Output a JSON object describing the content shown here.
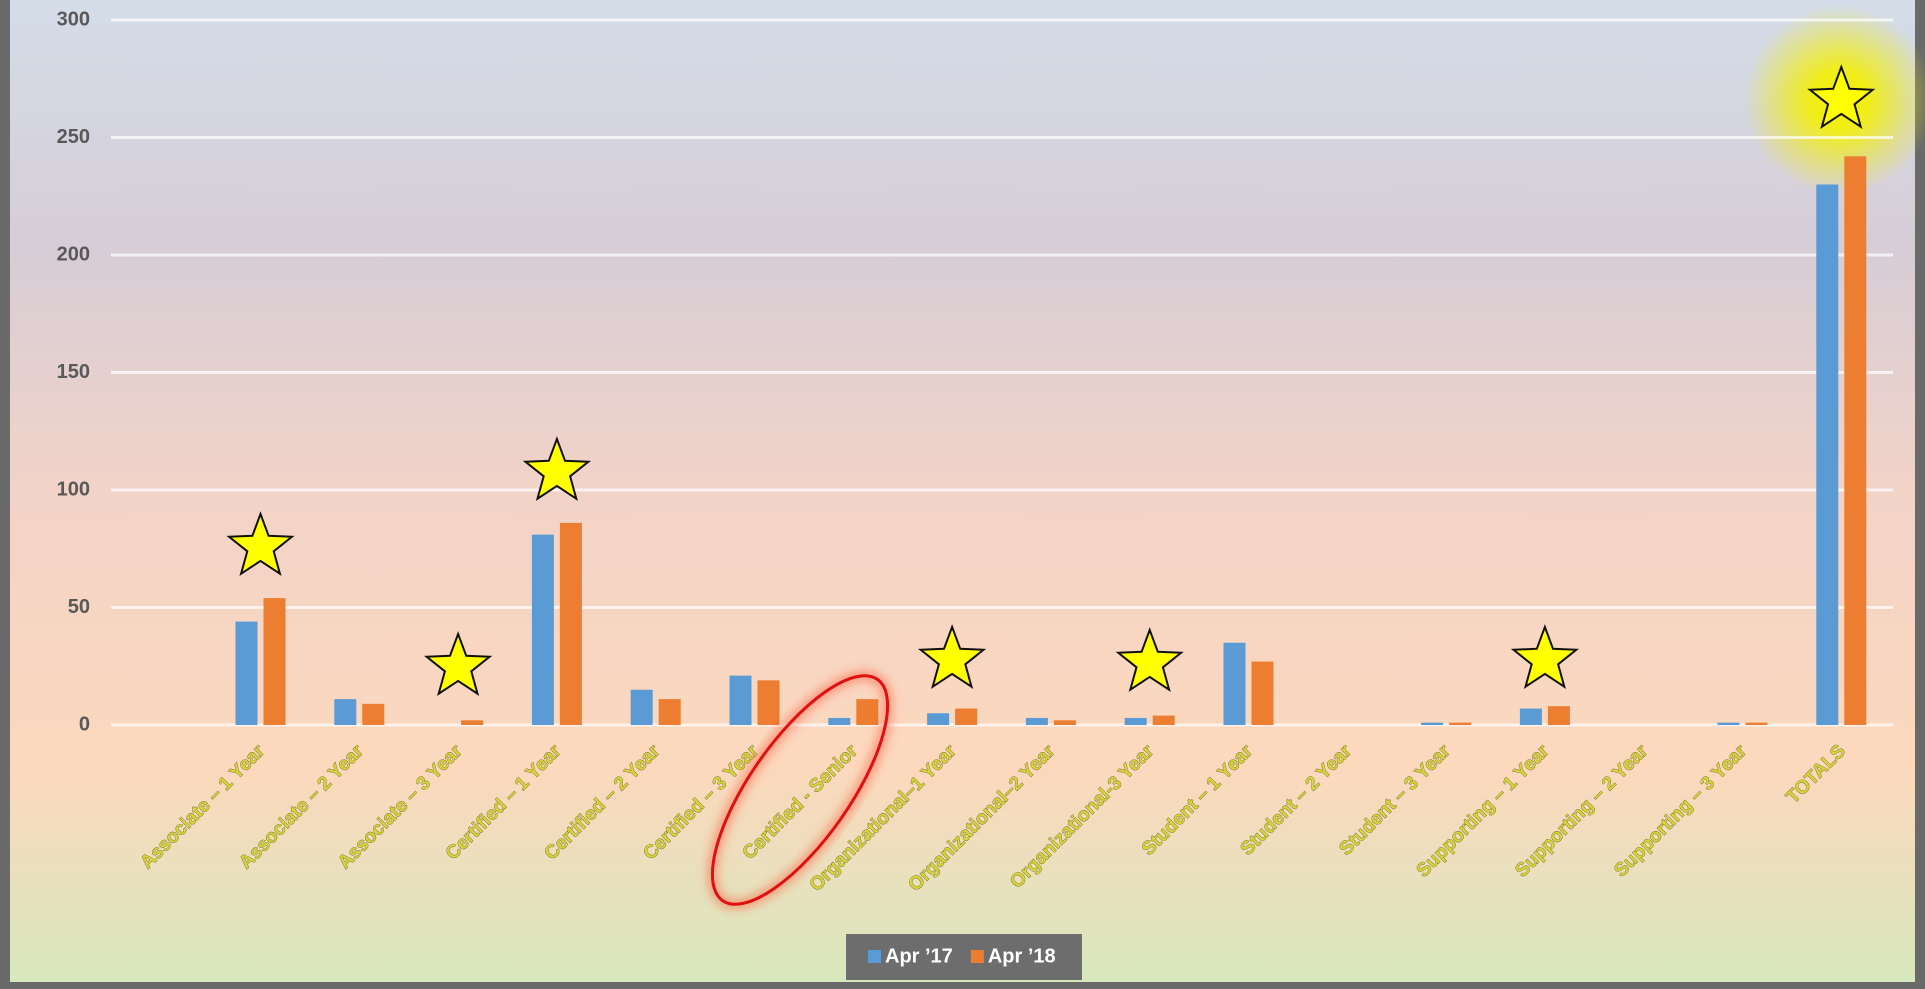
{
  "chart_data": {
    "type": "bar",
    "categories": [
      "Associate – 1 Year",
      "Associate – 2 Year",
      "Associate – 3 Year",
      "Certified – 1 Year",
      "Certified – 2 Year",
      "Certified – 3 Year",
      "Certified - Senior",
      "Organizational–1 Year",
      "Organizational–2 Year",
      "Organizational-3 Year",
      "Student – 1 Year",
      "Student – 2 Year",
      "Student – 3 Year",
      "Supporting – 1 Year",
      "Supporting – 2 Year",
      "Supporting – 3 Year",
      "TOTALS"
    ],
    "series": [
      {
        "name": "Apr ’17",
        "color": "#5b9bd5",
        "values": [
          44,
          11,
          0,
          81,
          15,
          21,
          3,
          5,
          3,
          3,
          35,
          0,
          1,
          7,
          0,
          1,
          230
        ]
      },
      {
        "name": "Apr ’18",
        "color": "#ed7d31",
        "values": [
          54,
          9,
          2,
          86,
          11,
          19,
          11,
          7,
          2,
          4,
          27,
          0,
          1,
          8,
          0,
          1,
          242
        ]
      }
    ],
    "ylim": [
      0,
      300
    ],
    "yticks": [
      0,
      50,
      100,
      150,
      200,
      250,
      300
    ],
    "grid": true,
    "legend": "bottom"
  }
}
